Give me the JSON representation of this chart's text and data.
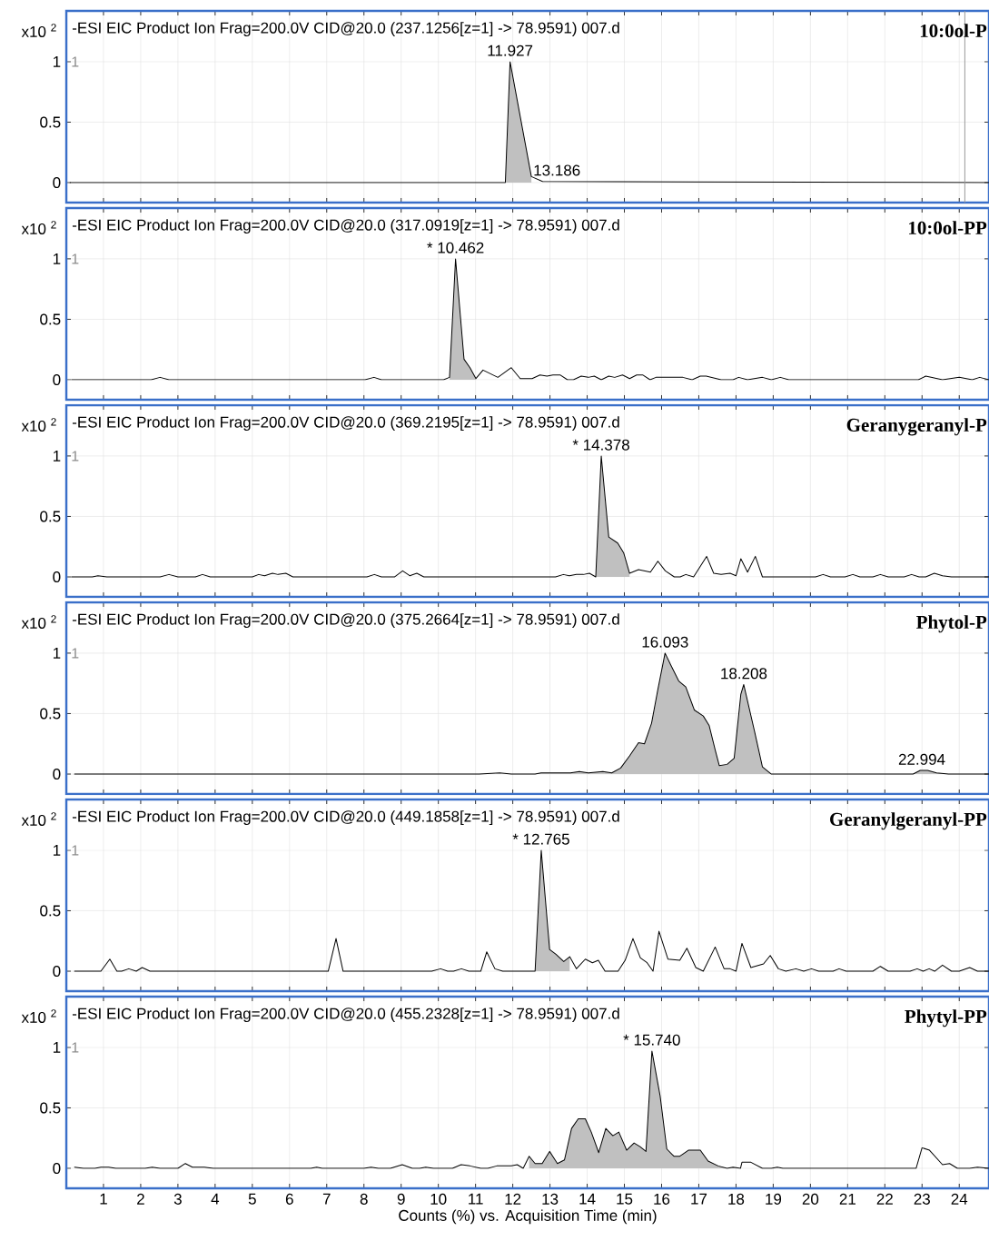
{
  "chart_data": [
    {
      "type": "line",
      "title": "-ESI EIC Product Ion Frag=200.0V CID@20.0 (237.1256[z=1] -> 78.9591) 007.d",
      "subtitle": "10:0ol-P",
      "ylabel": "x10 $^{2}$",
      "xlim": [
        0,
        24.8
      ],
      "ylim": [
        -0.165,
        1.42
      ],
      "yticks": [
        0,
        0.5,
        1
      ],
      "xticks": [
        1,
        2,
        3,
        4,
        5,
        6,
        7,
        8,
        9,
        10,
        11,
        12,
        13,
        14,
        15,
        16,
        17,
        18,
        19,
        20,
        21,
        22,
        23,
        24
      ],
      "tick_labels": "y",
      "grid": true,
      "ref_lines": [
        {
          "axis": "x",
          "value": 24.15,
          "color": "#999999"
        }
      ],
      "annotations": [
        "1",
        {
          "text": "11.927",
          "x": 11.927,
          "y": 1.0
        },
        {
          "text": "13.186",
          "x": 13.186,
          "y": 0.01
        }
      ],
      "series": [
        {
          "color": "#000000",
          "x": [
            0.1,
            11.8,
            11.927,
            12.5,
            12.8,
            24.8
          ],
          "values": [
            0,
            0,
            1.0,
            0.05,
            0.01,
            0
          ]
        },
        {
          "type": "area",
          "color": "#c0c0c0",
          "x": [
            11.8,
            11.927,
            12.5
          ],
          "values": [
            0,
            1.0,
            0.05
          ]
        }
      ]
    },
    {
      "type": "line",
      "title": "-ESI EIC Product Ion Frag=200.0V CID@20.0 (317.0919[z=1] -> 78.9591) 007.d",
      "subtitle": "10:0ol-PP",
      "ylabel": "x10 $^{2}$",
      "xlim": [
        0,
        24.8
      ],
      "ylim": [
        -0.165,
        1.42
      ],
      "yticks": [
        0,
        0.5,
        1
      ],
      "xticks": [
        1,
        2,
        3,
        4,
        5,
        6,
        7,
        8,
        9,
        10,
        11,
        12,
        13,
        14,
        15,
        16,
        17,
        18,
        19,
        20,
        21,
        22,
        23,
        24
      ],
      "tick_labels": "y",
      "grid": true,
      "annotations": [
        "1",
        {
          "text": "* 10.462",
          "x": 10.462,
          "y": 1.0
        }
      ],
      "series": [
        {
          "color": "#000000",
          "x": [
            0.14,
            2.28,
            2.52,
            2.76,
            8.03,
            8.27,
            8.47,
            10.14,
            10.3,
            10.462,
            10.69,
            10.85,
            11.01,
            11.2,
            11.6,
            11.96,
            12.2,
            12.52,
            12.73,
            12.92,
            13.08,
            13.27,
            13.47,
            13.63,
            13.84,
            14.03,
            14.19,
            14.38,
            14.58,
            14.74,
            14.95,
            15.14,
            15.33,
            15.49,
            15.69,
            15.85,
            16.57,
            16.82,
            17.04,
            17.2,
            17.6,
            17.92,
            18.07,
            18.31,
            18.71,
            18.95,
            19.19,
            19.42,
            22.9,
            23.1,
            23.55,
            24.0,
            24.35,
            24.55,
            24.8
          ],
          "values": [
            0,
            0,
            0.02,
            0,
            0,
            0.02,
            0,
            0,
            0.02,
            1.0,
            0.17,
            0.1,
            0.01,
            0.08,
            0.02,
            0.1,
            0.01,
            0.01,
            0.04,
            0.03,
            0.04,
            0.04,
            0,
            0,
            0.03,
            0.02,
            0.03,
            0,
            0.03,
            0.02,
            0.04,
            0.01,
            0.04,
            0.04,
            0,
            0.02,
            0.02,
            0,
            0.03,
            0.03,
            0,
            0,
            0.02,
            0,
            0.02,
            0,
            0.02,
            0,
            0,
            0.03,
            0,
            0.02,
            0,
            0.02,
            0
          ]
        },
        {
          "type": "area",
          "color": "#c0c0c0",
          "x": [
            10.3,
            10.462,
            10.69,
            10.85,
            11.01
          ],
          "values": [
            0.02,
            1.0,
            0.17,
            0.1,
            0.01
          ]
        }
      ]
    },
    {
      "type": "line",
      "title": "-ESI EIC Product Ion Frag=200.0V CID@20.0 (369.2195[z=1] -> 78.9591) 007.d",
      "subtitle": "Geranygeranyl-P",
      "ylabel": "x10 $^{2}$",
      "xlim": [
        0,
        24.8
      ],
      "ylim": [
        -0.165,
        1.42
      ],
      "yticks": [
        0,
        0.5,
        1
      ],
      "xticks": [
        1,
        2,
        3,
        4,
        5,
        6,
        7,
        8,
        9,
        10,
        11,
        12,
        13,
        14,
        15,
        16,
        17,
        18,
        19,
        20,
        21,
        22,
        23,
        24
      ],
      "tick_labels": "y",
      "grid": true,
      "annotations": [
        "1",
        {
          "text": "* 14.378",
          "x": 14.378,
          "y": 1.0
        }
      ],
      "series": [
        {
          "color": "#000000",
          "x": [
            0.14,
            0.7,
            0.85,
            1.09,
            2.52,
            2.76,
            3.0,
            3.47,
            3.66,
            3.87,
            5.0,
            5.17,
            5.33,
            5.54,
            5.69,
            5.9,
            6.09,
            8.08,
            8.28,
            8.47,
            8.82,
            9.04,
            9.23,
            9.42,
            9.61,
            13.15,
            13.36,
            13.52,
            13.71,
            13.9,
            14.06,
            14.23,
            14.378,
            14.58,
            14.82,
            14.98,
            15.14,
            15.38,
            15.7,
            15.9,
            16.1,
            16.34,
            16.5,
            16.65,
            16.86,
            17.21,
            17.4,
            17.6,
            17.84,
            18.0,
            18.13,
            18.31,
            18.52,
            18.71,
            20.14,
            20.34,
            20.54,
            20.93,
            21.14,
            21.33,
            21.68,
            21.88,
            22.09,
            22.52,
            22.72,
            22.92,
            23.1,
            23.33,
            23.55,
            23.79,
            24.8
          ],
          "values": [
            0,
            0,
            0.01,
            0,
            0,
            0.02,
            0,
            0,
            0.02,
            0,
            0,
            0.02,
            0.01,
            0.03,
            0.02,
            0.03,
            0,
            0,
            0.02,
            0,
            0,
            0.05,
            0.01,
            0.03,
            0,
            0,
            0.02,
            0.01,
            0.02,
            0.02,
            0.03,
            0,
            1.0,
            0.33,
            0.28,
            0.2,
            0.03,
            0.06,
            0.04,
            0.13,
            0.05,
            0,
            0,
            0.02,
            0,
            0.17,
            0.03,
            0.02,
            0.03,
            0.01,
            0.15,
            0.04,
            0.17,
            0,
            0,
            0.02,
            0,
            0,
            0.02,
            0,
            0,
            0.02,
            0,
            0,
            0.02,
            0,
            0,
            0.03,
            0.01,
            0,
            0
          ]
        },
        {
          "type": "area",
          "color": "#c0c0c0",
          "x": [
            14.23,
            14.378,
            14.58,
            14.82,
            14.98,
            15.14
          ],
          "values": [
            0,
            1.0,
            0.33,
            0.28,
            0.2,
            0.03
          ]
        }
      ]
    },
    {
      "type": "line",
      "title": "-ESI EIC Product Ion Frag=200.0V CID@20.0 (375.2664[z=1] -> 78.9591) 007.d",
      "subtitle": "Phytol-P",
      "ylabel": "x10 $^{2}$",
      "xlim": [
        0,
        24.8
      ],
      "ylim": [
        -0.165,
        1.42
      ],
      "yticks": [
        0,
        0.5,
        1
      ],
      "xticks": [
        1,
        2,
        3,
        4,
        5,
        6,
        7,
        8,
        9,
        10,
        11,
        12,
        13,
        14,
        15,
        16,
        17,
        18,
        19,
        20,
        21,
        22,
        23,
        24
      ],
      "tick_labels": "y",
      "grid": true,
      "annotations": [
        "1",
        {
          "text": "16.093",
          "x": 16.093,
          "y": 1.0
        },
        {
          "text": "18.208",
          "x": 18.208,
          "y": 0.74
        },
        {
          "text": "22.994",
          "x": 22.994,
          "y": 0.03
        }
      ],
      "series": [
        {
          "color": "#000000",
          "x": [
            0.22,
            11.1,
            11.65,
            11.96,
            12.6,
            12.76,
            13.55,
            13.79,
            14.03,
            14.42,
            14.66,
            14.9,
            15.14,
            15.38,
            15.54,
            15.73,
            15.9,
            16.093,
            16.25,
            16.46,
            16.65,
            16.88,
            17.12,
            17.28,
            17.44,
            17.55,
            17.76,
            17.95,
            18.13,
            18.208,
            18.5,
            18.71,
            18.95,
            22.76,
            22.95,
            23.15,
            23.39,
            23.71,
            24.8
          ],
          "values": [
            0,
            0,
            0.01,
            0,
            0,
            0.01,
            0.01,
            0.02,
            0.01,
            0.02,
            0.01,
            0.05,
            0.15,
            0.26,
            0.25,
            0.42,
            0.7,
            1.0,
            0.9,
            0.77,
            0.72,
            0.53,
            0.48,
            0.4,
            0.2,
            0.07,
            0.08,
            0.13,
            0.66,
            0.74,
            0.35,
            0.06,
            0,
            0,
            0.03,
            0.03,
            0.01,
            0,
            0
          ]
        },
        {
          "type": "area",
          "color": "#c0c0c0",
          "x": [
            12.6,
            12.76,
            13.55,
            13.79,
            14.03,
            14.42,
            14.66,
            14.9,
            15.14,
            15.38,
            15.54,
            15.73,
            15.9,
            16.093,
            16.25,
            16.46,
            16.65,
            16.88,
            17.12,
            17.28,
            17.44,
            17.55
          ],
          "values": [
            0,
            0.01,
            0.01,
            0.02,
            0.01,
            0.02,
            0.01,
            0.05,
            0.15,
            0.26,
            0.25,
            0.42,
            0.7,
            1.0,
            0.9,
            0.77,
            0.72,
            0.53,
            0.48,
            0.4,
            0.2,
            0.07
          ]
        },
        {
          "type": "area",
          "color": "#c0c0c0",
          "x": [
            17.55,
            17.76,
            17.95,
            18.13,
            18.208,
            18.5,
            18.71,
            18.95
          ],
          "values": [
            0.07,
            0.08,
            0.13,
            0.66,
            0.74,
            0.35,
            0.06,
            0
          ]
        },
        {
          "type": "area",
          "color": "#c0c0c0",
          "x": [
            22.76,
            22.95,
            23.15,
            23.39,
            23.71
          ],
          "values": [
            0,
            0.03,
            0.03,
            0.01,
            0
          ]
        }
      ]
    },
    {
      "type": "line",
      "title": "-ESI EIC Product Ion Frag=200.0V CID@20.0 (449.1858[z=1] -> 78.9591) 007.d",
      "subtitle": "Geranylgeranyl-PP",
      "ylabel": "x10 $^{2}$",
      "xlim": [
        0,
        24.8
      ],
      "ylim": [
        -0.165,
        1.42
      ],
      "yticks": [
        0,
        0.5,
        1
      ],
      "xticks": [
        1,
        2,
        3,
        4,
        5,
        6,
        7,
        8,
        9,
        10,
        11,
        12,
        13,
        14,
        15,
        16,
        17,
        18,
        19,
        20,
        21,
        22,
        23,
        24
      ],
      "tick_labels": "y",
      "grid": true,
      "annotations": [
        "1",
        {
          "text": "* 12.765",
          "x": 12.765,
          "y": 1.0
        }
      ],
      "series": [
        {
          "color": "#000000",
          "x": [
            0.22,
            0.93,
            1.17,
            1.36,
            1.49,
            1.68,
            1.88,
            2.04,
            2.25,
            7.04,
            7.25,
            7.44,
            9.82,
            10.06,
            10.25,
            10.41,
            10.62,
            10.82,
            11.14,
            11.3,
            11.52,
            11.73,
            12.6,
            12.765,
            12.99,
            13.16,
            13.37,
            13.53,
            13.71,
            13.95,
            14.14,
            14.3,
            14.48,
            14.83,
            15.02,
            15.23,
            15.43,
            15.61,
            15.77,
            15.93,
            16.17,
            16.49,
            16.68,
            16.92,
            17.12,
            17.44,
            17.68,
            17.84,
            18.0,
            18.16,
            18.4,
            18.74,
            18.92,
            19.14,
            19.34,
            19.61,
            19.82,
            20.03,
            20.22,
            20.61,
            20.77,
            20.96,
            21.68,
            21.88,
            22.09,
            22.68,
            22.87,
            23.03,
            23.19,
            23.34,
            23.55,
            23.79,
            24.0,
            24.28,
            24.49,
            24.8
          ],
          "values": [
            0,
            0,
            0.1,
            0,
            0,
            0.02,
            0,
            0.03,
            0,
            0,
            0.27,
            0,
            0,
            0.02,
            0,
            0,
            0.02,
            0,
            0,
            0.16,
            0.02,
            0,
            0,
            1.0,
            0.18,
            0.14,
            0.08,
            0.12,
            0.02,
            0.1,
            0.07,
            0.09,
            0,
            0,
            0.09,
            0.27,
            0.11,
            0.07,
            0,
            0.33,
            0.1,
            0.09,
            0.19,
            0.03,
            0,
            0.2,
            0.02,
            0.02,
            0,
            0.23,
            0.03,
            0.06,
            0.13,
            0.02,
            0,
            0.02,
            0,
            0.02,
            0,
            0,
            0.02,
            0,
            0,
            0.04,
            0,
            0,
            0.02,
            0,
            0.02,
            0,
            0.05,
            0,
            0,
            0.03,
            0,
            0
          ]
        },
        {
          "type": "area",
          "color": "#c0c0c0",
          "x": [
            12.6,
            12.765,
            12.99,
            13.16,
            13.37,
            13.53
          ],
          "values": [
            0.01,
            1.0,
            0.18,
            0.14,
            0.08,
            0.12
          ]
        }
      ]
    },
    {
      "type": "line",
      "title": "-ESI EIC Product Ion Frag=200.0V CID@20.0 (455.2328[z=1] -> 78.9591) 007.d",
      "subtitle": "Phytyl-PP",
      "ylabel": "x10 $^{2}$",
      "xlabel": "Counts (%) vs. Acquisition Time (min)",
      "xlim": [
        0,
        24.8
      ],
      "ylim": [
        -0.165,
        1.42
      ],
      "yticks": [
        0,
        0.5,
        1
      ],
      "xticks": [
        1,
        2,
        3,
        4,
        5,
        6,
        7,
        8,
        9,
        10,
        11,
        12,
        13,
        14,
        15,
        16,
        17,
        18,
        19,
        20,
        21,
        22,
        23,
        24
      ],
      "grid": true,
      "annotations": [
        "1",
        {
          "text": "* 15.740",
          "x": 15.74,
          "y": 0.97
        }
      ],
      "series": [
        {
          "color": "#000000",
          "x": [
            0.22,
            0.46,
            0.77,
            0.93,
            1.14,
            1.33,
            2.12,
            2.31,
            2.52,
            3.0,
            3.2,
            3.39,
            3.71,
            3.95,
            6.57,
            6.73,
            6.88,
            8.0,
            8.19,
            8.39,
            8.71,
            9.03,
            9.3,
            9.5,
            9.66,
            9.87,
            10.38,
            10.61,
            10.85,
            11.14,
            11.33,
            11.57,
            11.96,
            12.12,
            12.28,
            12.44,
            12.6,
            12.79,
            12.99,
            13.2,
            13.39,
            13.58,
            13.76,
            13.95,
            14.11,
            14.31,
            14.5,
            14.69,
            14.85,
            15.06,
            15.26,
            15.42,
            15.58,
            15.74,
            15.96,
            16.14,
            16.33,
            16.49,
            16.72,
            17.04,
            17.25,
            17.52,
            17.76,
            17.92,
            18.12,
            18.16,
            18.4,
            18.71,
            18.95,
            19.11,
            19.26,
            22.84,
            23.0,
            23.2,
            23.55,
            23.74,
            23.95,
            24.28,
            24.49,
            24.8
          ],
          "values": [
            0.01,
            0,
            0,
            0.01,
            0.01,
            0,
            0,
            0.01,
            0,
            0,
            0.04,
            0.01,
            0.01,
            0,
            0,
            0.01,
            0,
            0,
            0.01,
            0,
            0,
            0.03,
            0,
            0,
            0.01,
            0,
            0,
            0.03,
            0.02,
            0,
            0,
            0.02,
            0.02,
            0.03,
            0,
            0.1,
            0.04,
            0.04,
            0.14,
            0.04,
            0.07,
            0.33,
            0.41,
            0.41,
            0.3,
            0.13,
            0.33,
            0.27,
            0.3,
            0.15,
            0.21,
            0.18,
            0.14,
            0.97,
            0.6,
            0.16,
            0.1,
            0.1,
            0.15,
            0.15,
            0.06,
            0.02,
            0,
            0.01,
            0,
            0.05,
            0.05,
            0,
            0,
            0.01,
            0,
            0,
            0.17,
            0.15,
            0.03,
            0.04,
            0,
            0,
            0.01,
            0
          ]
        },
        {
          "type": "area",
          "color": "#c0c0c0",
          "x": [
            12.44,
            12.6,
            12.79,
            12.99,
            13.2,
            13.39,
            13.58,
            13.76,
            13.95,
            14.11,
            14.31,
            14.5,
            14.69,
            14.85,
            15.06,
            15.26,
            15.42,
            15.58,
            15.74,
            15.96,
            16.14,
            16.33,
            16.49,
            16.72,
            17.04,
            17.25,
            17.52,
            17.76,
            17.92,
            18.12
          ],
          "values": [
            0.1,
            0.04,
            0.04,
            0.14,
            0.04,
            0.07,
            0.33,
            0.41,
            0.41,
            0.3,
            0.13,
            0.33,
            0.27,
            0.3,
            0.15,
            0.21,
            0.18,
            0.14,
            0.97,
            0.6,
            0.16,
            0.1,
            0.1,
            0.15,
            0.15,
            0.06,
            0.02,
            0,
            0.01,
            0
          ]
        }
      ]
    }
  ]
}
